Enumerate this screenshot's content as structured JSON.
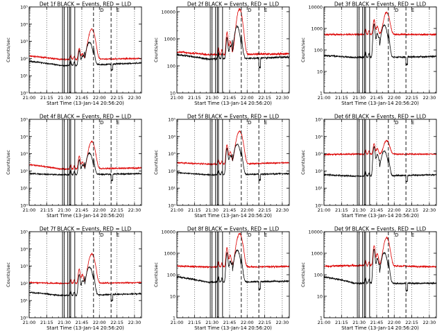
{
  "colors": {
    "events": "#000000",
    "lld": "#dd0000",
    "background": "#ffffff",
    "axes": "#000000"
  },
  "common": {
    "xticks": [
      "21:00",
      "21:15",
      "21:30",
      "21:45",
      "22:00",
      "22:15",
      "22:30"
    ],
    "xlabel": "Start Time (13-Jan-14 20:56:20)",
    "ylabel": "Counts/sec",
    "xrange_minutes_after_21_00": [
      0,
      96
    ],
    "solid_markers_minutes": [
      28.5,
      30,
      33,
      34.5,
      35.5,
      39
    ],
    "dashed_markers_minutes": [
      55,
      70
    ],
    "dotted_grid_minutes": [
      15,
      30,
      45,
      60,
      75,
      90
    ],
    "marker_labels": [
      {
        "text": "D",
        "minute": 60.5
      },
      {
        "text": "E",
        "minute": 74.5
      }
    ]
  },
  "chart_data": [
    {
      "type": "line",
      "title": "Det 1f BLACK = Events, RED = LLD",
      "y_scale": "log",
      "ylim": [
        1,
        100000
      ],
      "yticks": [
        "10⁰",
        "10¹",
        "10²",
        "10³",
        "10⁴",
        "10⁵"
      ],
      "ytick_values": [
        1,
        10,
        100,
        1000,
        10000,
        100000
      ],
      "series": [
        {
          "color": "red",
          "baseline_start": 140,
          "baseline_mid": 90,
          "baseline_end": 100,
          "spike_43": 300,
          "flare_peak": 5000
        },
        {
          "color": "black",
          "baseline_start": 70,
          "baseline_mid": 40,
          "baseline_end": 55,
          "spike_43": 250,
          "flare_peak": 2500
        }
      ]
    },
    {
      "type": "line",
      "title": "Det 2f BLACK = Events, RED = LLD",
      "y_scale": "log",
      "ylim": [
        10,
        15000
      ],
      "yticks": [
        "10",
        "100",
        "1000",
        "10000"
      ],
      "ytick_values": [
        10,
        100,
        1000,
        10000
      ],
      "series": [
        {
          "color": "red",
          "baseline_start": 330,
          "baseline_mid": 260,
          "baseline_end": 280,
          "spike_43": 1500,
          "flare_peak": 12000
        },
        {
          "color": "black",
          "baseline_start": 260,
          "baseline_mid": 180,
          "baseline_end": 210,
          "spike_43": 900,
          "flare_peak": 8000
        }
      ]
    },
    {
      "type": "line",
      "title": "Det 3f BLACK = Events, RED = LLD",
      "y_scale": "log",
      "ylim": [
        1,
        10000
      ],
      "yticks": [
        "1",
        "10",
        "100",
        "1000",
        "10000"
      ],
      "ytick_values": [
        1,
        10,
        100,
        1000,
        10000
      ],
      "series": [
        {
          "color": "red",
          "baseline_start": 520,
          "baseline_mid": 530,
          "baseline_end": 520,
          "spike_43": 2000,
          "flare_peak": 5000
        },
        {
          "color": "black",
          "baseline_start": 55,
          "baseline_mid": 45,
          "baseline_end": 50,
          "spike_43": 1500,
          "flare_peak": 4000
        }
      ]
    },
    {
      "type": "line",
      "title": "Det 4f BLACK = Events, RED = LLD",
      "y_scale": "log",
      "ylim": [
        1,
        100000
      ],
      "yticks": [
        "10⁰",
        "10¹",
        "10²",
        "10³",
        "10⁴",
        "10⁵"
      ],
      "ytick_values": [
        1,
        10,
        100,
        1000,
        10000,
        100000
      ],
      "series": [
        {
          "color": "red",
          "baseline_start": 230,
          "baseline_mid": 130,
          "baseline_end": 150,
          "spike_43": 600,
          "flare_peak": 5000
        },
        {
          "color": "black",
          "baseline_start": 70,
          "baseline_mid": 60,
          "baseline_end": 70,
          "spike_43": 400,
          "flare_peak": 3000
        }
      ]
    },
    {
      "type": "line",
      "title": "Det 5f BLACK = Events, RED = LLD",
      "y_scale": "log",
      "ylim": [
        1,
        100000
      ],
      "yticks": [
        "10⁰",
        "10¹",
        "10²",
        "10³",
        "10⁴",
        "10⁵"
      ],
      "ytick_values": [
        1,
        10,
        100,
        1000,
        10000,
        100000
      ],
      "series": [
        {
          "color": "red",
          "baseline_start": 300,
          "baseline_mid": 250,
          "baseline_end": 300,
          "spike_43": 3000,
          "flare_peak": 20000
        },
        {
          "color": "black",
          "baseline_start": 80,
          "baseline_mid": 60,
          "baseline_end": 70,
          "spike_43": 2000,
          "flare_peak": 10000
        }
      ]
    },
    {
      "type": "line",
      "title": "Det 6f BLACK = Events, RED = LLD",
      "y_scale": "log",
      "ylim": [
        1,
        100000
      ],
      "yticks": [
        "10⁰",
        "10¹",
        "10²",
        "10³",
        "10⁴",
        "10⁵"
      ],
      "ytick_values": [
        1,
        10,
        100,
        1000,
        10000,
        100000
      ],
      "series": [
        {
          "color": "red",
          "baseline_start": 900,
          "baseline_mid": 950,
          "baseline_end": 950,
          "spike_43": 3000,
          "flare_peak": 5000
        },
        {
          "color": "black",
          "baseline_start": 60,
          "baseline_mid": 50,
          "baseline_end": 60,
          "spike_43": 2500,
          "flare_peak": 4000
        }
      ]
    },
    {
      "type": "line",
      "title": "Det 7f BLACK = Events, RED = LLD",
      "y_scale": "log",
      "ylim": [
        1,
        100000
      ],
      "yticks": [
        "10⁰",
        "10¹",
        "10²",
        "10³",
        "10⁴",
        "10⁵"
      ],
      "ytick_values": [
        1,
        10,
        100,
        1000,
        10000,
        100000
      ],
      "series": [
        {
          "color": "red",
          "baseline_start": 110,
          "baseline_mid": 100,
          "baseline_end": 110,
          "spike_43": 600,
          "flare_peak": 5000
        },
        {
          "color": "black",
          "baseline_start": 30,
          "baseline_mid": 20,
          "baseline_end": 25,
          "spike_43": 300,
          "flare_peak": 2500
        }
      ]
    },
    {
      "type": "line",
      "title": "Det 8f BLACK = Events, RED = LLD",
      "y_scale": "log",
      "ylim": [
        1,
        10000
      ],
      "yticks": [
        "1",
        "10",
        "100",
        "1000",
        "10000"
      ],
      "ytick_values": [
        1,
        10,
        100,
        1000,
        10000
      ],
      "series": [
        {
          "color": "red",
          "baseline_start": 250,
          "baseline_mid": 230,
          "baseline_end": 240,
          "spike_43": 1600,
          "flare_peak": 8000
        },
        {
          "color": "black",
          "baseline_start": 80,
          "baseline_mid": 45,
          "baseline_end": 50,
          "spike_43": 1000,
          "flare_peak": 4000
        }
      ]
    },
    {
      "type": "line",
      "title": "Det 9f BLACK = Events, RED = LLD",
      "y_scale": "log",
      "ylim": [
        1,
        10000
      ],
      "yticks": [
        "1",
        "10",
        "100",
        "1000",
        "10000"
      ],
      "ytick_values": [
        1,
        10,
        100,
        1000,
        10000
      ],
      "series": [
        {
          "color": "red",
          "baseline_start": 250,
          "baseline_mid": 270,
          "baseline_end": 230,
          "spike_43": 2000,
          "flare_peak": 5000
        },
        {
          "color": "black",
          "baseline_start": 80,
          "baseline_mid": 40,
          "baseline_end": 40,
          "spike_43": 1500,
          "flare_peak": 3000
        }
      ]
    }
  ]
}
